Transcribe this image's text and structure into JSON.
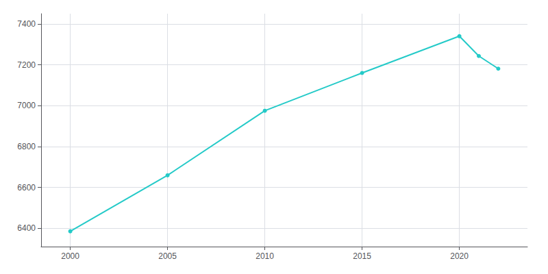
{
  "chart_data": {
    "type": "line",
    "x": [
      2000,
      2005,
      2010,
      2015,
      2020,
      2021,
      2022
    ],
    "values": [
      6385,
      6659,
      6975,
      7160,
      7340,
      7243,
      7181
    ],
    "color": "#24cac8",
    "marker": "circle",
    "xlim": [
      1998.5,
      2023.5
    ],
    "xticks": [
      2000,
      2005,
      2010,
      2015,
      2020
    ],
    "ylim": [
      6310,
      7450
    ],
    "yticks": [
      6400,
      6600,
      6800,
      7000,
      7200,
      7400
    ],
    "grid": true
  }
}
